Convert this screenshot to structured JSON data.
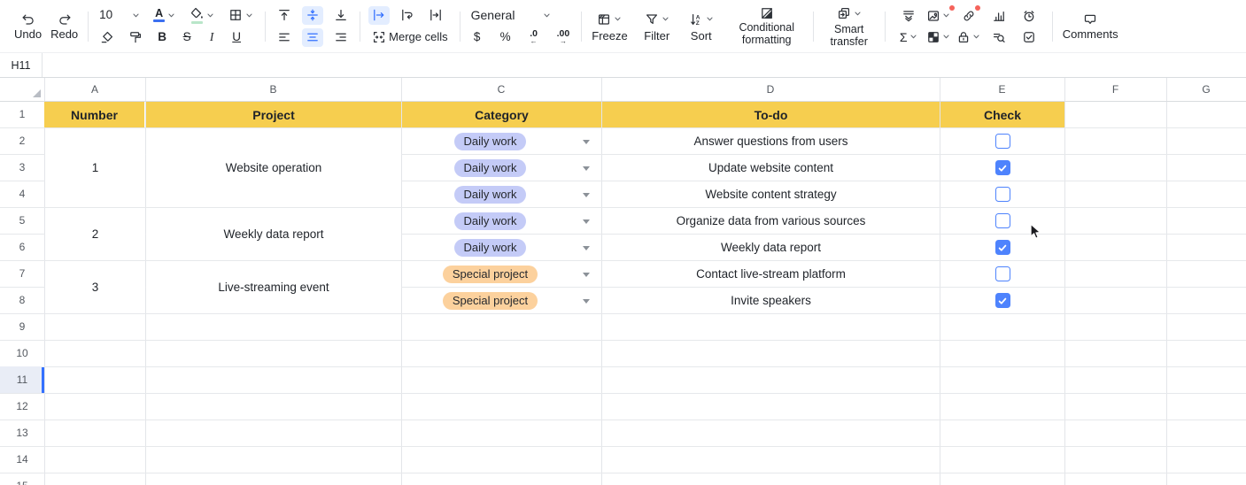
{
  "toolbar": {
    "undo": "Undo",
    "redo": "Redo",
    "font_size": "10",
    "font_color_letter": "A",
    "bold": "B",
    "strikethrough": "S",
    "italic": "I",
    "underline": "U",
    "merge_cells": "Merge cells",
    "number_format": "General",
    "dollar": "$",
    "percent": "%",
    "dec_decrease": ".0",
    "dec_decrease_arrow": "←",
    "dec_increase": ".00",
    "dec_increase_arrow": "→",
    "freeze": "Freeze",
    "filter": "Filter",
    "sort": "Sort",
    "sort_a": "A",
    "sort_z": "Z",
    "conditional_formatting": "Conditional formatting",
    "smart_transfer": "Smart transfer",
    "sigma": "Σ",
    "comments": "Comments"
  },
  "grid": {
    "columns": [
      "A",
      "B",
      "C",
      "D",
      "E",
      "F",
      "G"
    ],
    "rows": [
      "1",
      "2",
      "3",
      "4",
      "5",
      "6",
      "7",
      "8",
      "9",
      "10",
      "11",
      "12",
      "13",
      "14",
      "15"
    ],
    "selected_cell": "H11",
    "selected_row": "11"
  },
  "table": {
    "headers": [
      "Number",
      "Project",
      "Category",
      "To-do",
      "Check"
    ],
    "groups": [
      {
        "number": "1",
        "project": "Website operation",
        "tasks": [
          {
            "category": "Daily work",
            "badge": "blue",
            "todo": "Answer questions from users",
            "checked": false
          },
          {
            "category": "Daily work",
            "badge": "blue",
            "todo": "Update website content",
            "checked": true
          },
          {
            "category": "Daily work",
            "badge": "blue",
            "todo": "Website content strategy",
            "checked": false
          }
        ]
      },
      {
        "number": "2",
        "project": "Weekly data report",
        "tasks": [
          {
            "category": "Daily work",
            "badge": "blue",
            "todo": "Organize data from various sources",
            "checked": false
          },
          {
            "category": "Daily work",
            "badge": "blue",
            "todo": "Weekly data report",
            "checked": true
          }
        ]
      },
      {
        "number": "3",
        "project": "Live-streaming event",
        "tasks": [
          {
            "category": "Special project",
            "badge": "orange",
            "todo": "Contact live-stream platform",
            "checked": false
          },
          {
            "category": "Special project",
            "badge": "orange",
            "todo": "Invite speakers",
            "checked": true
          }
        ]
      }
    ]
  },
  "colors": {
    "header_bg": "#F6CE4F",
    "badge_blue": "#C4CBF7",
    "badge_orange": "#FCD19D",
    "accent": "#3370FF",
    "checkbox_blue": "#4E83FD",
    "font_color_underline": "#3B6FF0",
    "fill_color_underline": "#B9E6C9"
  }
}
